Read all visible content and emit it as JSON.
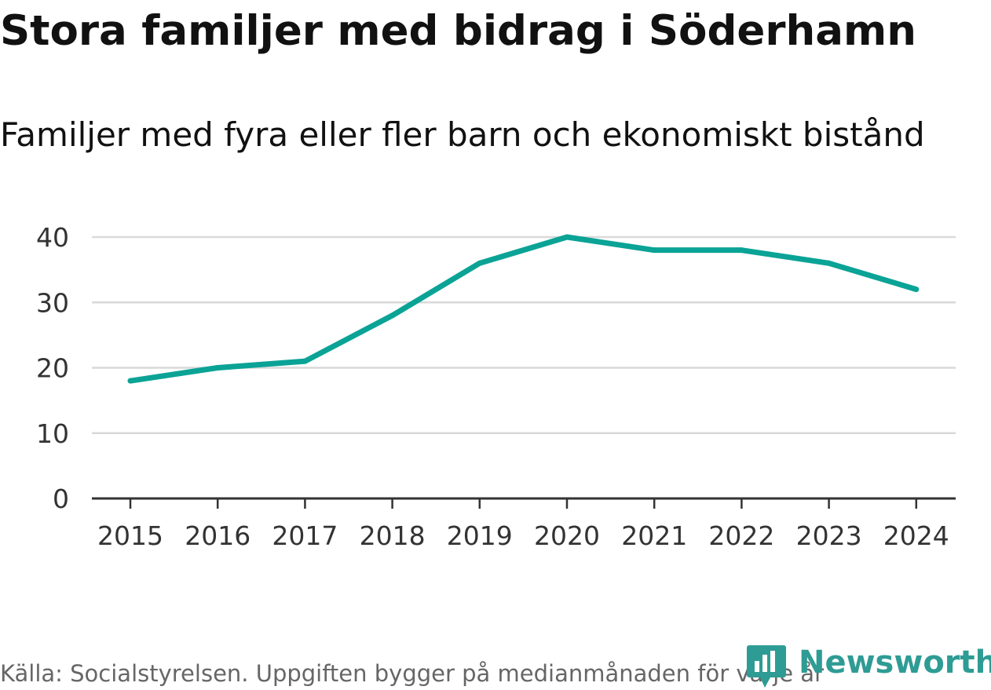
{
  "title": "Stora familjer med bidrag i Söderhamn",
  "subtitle": "Familjer med fyra eller fler barn och ekonomiskt bistånd",
  "source": "Källa: Socialstyrelsen. Uppgiften bygger på medianmånaden för varje år",
  "brand": {
    "name": "Newsworthy",
    "color": "#2e9c94",
    "icon": "newsworthy-logo-icon"
  },
  "colors": {
    "line": "#0aa396",
    "grid": "#d9d9d9",
    "axis": "#333333"
  },
  "chart_data": {
    "type": "line",
    "title": "Stora familjer med bidrag i Söderhamn",
    "subtitle": "Familjer med fyra eller fler barn och ekonomiskt bistånd",
    "xlabel": "",
    "ylabel": "",
    "grid": true,
    "legend": "none",
    "categories": [
      "2015",
      "2016",
      "2017",
      "2018",
      "2019",
      "2020",
      "2021",
      "2022",
      "2023",
      "2024"
    ],
    "series": [
      {
        "name": "Familjer med fyra eller fler barn och ekonomiskt bistånd",
        "values": [
          18,
          20,
          21,
          28,
          36,
          40,
          38,
          38,
          36,
          32
        ]
      }
    ],
    "yticks": [
      0,
      10,
      20,
      30,
      40
    ],
    "ylim": [
      0,
      40
    ]
  }
}
